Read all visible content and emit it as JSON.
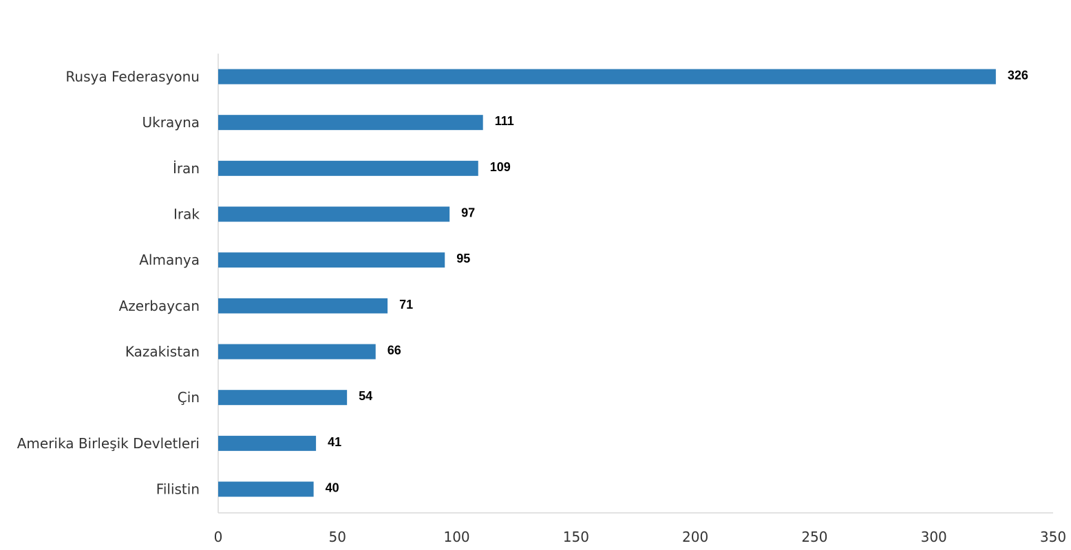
{
  "chart_data": {
    "type": "bar",
    "orientation": "horizontal",
    "title": "",
    "xlabel": "",
    "ylabel": "",
    "categories": [
      "Rusya Federasyonu",
      "Ukrayna",
      "İran",
      "Irak",
      "Almanya",
      "Azerbaycan",
      "Kazakistan",
      "Çin",
      "Amerika Birleşik Devletleri",
      "Filistin"
    ],
    "values": [
      326,
      111,
      109,
      97,
      95,
      71,
      66,
      54,
      41,
      40
    ],
    "data_labels": [
      "326",
      "111",
      "109",
      "97",
      "95",
      "71",
      "66",
      "54",
      "41",
      "40"
    ],
    "xlim": [
      0,
      350
    ],
    "xticks": [
      0,
      50,
      100,
      150,
      200,
      250,
      300,
      350
    ],
    "xtick_labels": [
      "0",
      "50",
      "100",
      "150",
      "200",
      "250",
      "300",
      "350"
    ],
    "grid": false,
    "legend": "none",
    "bar_color": "#2F7DB8",
    "axis_color": "#D9D9D9"
  }
}
